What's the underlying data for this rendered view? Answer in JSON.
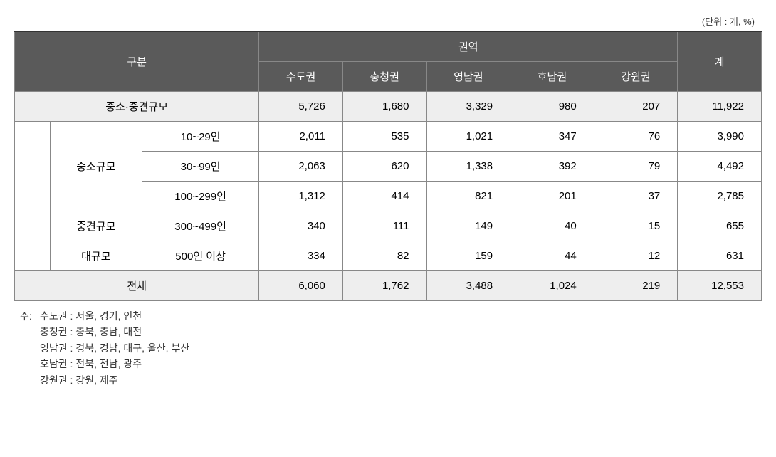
{
  "unit_label": "(단위 : 개, %)",
  "headers": {
    "category": "구분",
    "region": "권역",
    "total": "계",
    "regions": [
      "수도권",
      "충청권",
      "영남권",
      "호남권",
      "강원권"
    ]
  },
  "rows": {
    "sme_mid": {
      "label": "중소·중견규모",
      "values": [
        "5,726",
        "1,680",
        "3,329",
        "980",
        "207",
        "11,922"
      ]
    },
    "small": {
      "group_label": "중소규모",
      "r1": {
        "label": "10~29인",
        "values": [
          "2,011",
          "535",
          "1,021",
          "347",
          "76",
          "3,990"
        ]
      },
      "r2": {
        "label": "30~99인",
        "values": [
          "2,063",
          "620",
          "1,338",
          "392",
          "79",
          "4,492"
        ]
      },
      "r3": {
        "label": "100~299인",
        "values": [
          "1,312",
          "414",
          "821",
          "201",
          "37",
          "2,785"
        ]
      }
    },
    "mid": {
      "group_label": "중견규모",
      "r1": {
        "label": "300~499인",
        "values": [
          "340",
          "111",
          "149",
          "40",
          "15",
          "655"
        ]
      }
    },
    "large": {
      "group_label": "대규모",
      "r1": {
        "label": "500인 이상",
        "values": [
          "334",
          "82",
          "159",
          "44",
          "12",
          "631"
        ]
      }
    },
    "total": {
      "label": "전체",
      "values": [
        "6,060",
        "1,762",
        "3,488",
        "1,024",
        "219",
        "12,553"
      ]
    }
  },
  "notes": {
    "prefix": "주:",
    "lines": [
      "수도권 : 서울, 경기, 인천",
      "충청권 : 충북, 충남, 대전",
      "영남권 : 경북, 경남, 대구, 울산, 부산",
      "호남권 : 전북, 전남, 광주",
      "강원권 : 강원, 제주"
    ]
  },
  "style": {
    "header_bg": "#5a5a5a",
    "header_fg": "#ffffff",
    "shaded_bg": "#eeeeee",
    "border_color": "#888888",
    "font_size_cell": 15,
    "font_size_notes": 14
  }
}
